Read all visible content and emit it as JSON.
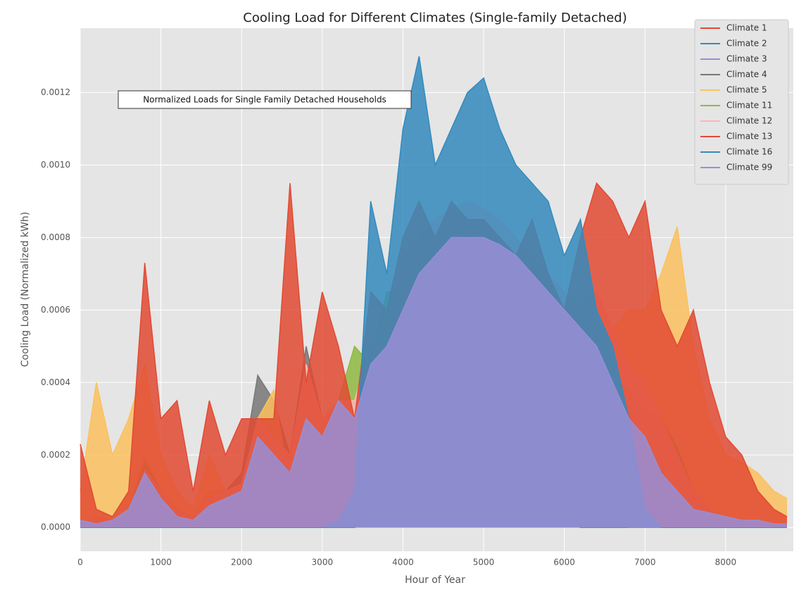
{
  "chart_data": {
    "type": "line",
    "title": "Cooling Load for Different Climates (Single-family Detached)",
    "x_label": "Hour of Year",
    "y_label": "Cooling Load (Normalized kWh)",
    "annotation": "Normalized Loads for Single Family Detached Households",
    "x": [
      0,
      200,
      400,
      600,
      800,
      1000,
      1200,
      1400,
      1600,
      1800,
      2000,
      2200,
      2400,
      2600,
      2800,
      3000,
      3200,
      3400,
      3600,
      3800,
      4000,
      4200,
      4400,
      4600,
      4800,
      5000,
      5200,
      5400,
      5600,
      5800,
      6000,
      6200,
      6400,
      6600,
      6800,
      7000,
      7200,
      7400,
      7600,
      7800,
      8000,
      8200,
      8400,
      8600,
      8760
    ],
    "xlim": [
      0,
      8760
    ],
    "xticks": [
      0,
      1000,
      2000,
      3000,
      4000,
      5000,
      6000,
      7000,
      8000
    ],
    "ylim": [
      -6.56e-05,
      0.0013776
    ],
    "yticks": [
      {
        "value": 0,
        "label": "0.0000"
      },
      0.0002,
      0.0004,
      0.0006,
      0.0008,
      {
        "value": 0.001,
        "label": "0.0010"
      },
      0.0012
    ],
    "grid": true,
    "legend": "upper right",
    "series": [
      {
        "name": "Climate 1",
        "color": "#E24A33",
        "values": [
          0,
          0,
          0,
          0,
          0,
          0,
          0,
          0,
          0,
          0,
          0,
          0,
          0,
          0,
          0,
          0,
          1e-05,
          1e-05,
          2e-05,
          2e-05,
          2e-05,
          3e-05,
          3e-05,
          3e-05,
          3e-05,
          2e-05,
          3e-05,
          2e-05,
          2e-05,
          2e-05,
          1e-05,
          1e-05,
          1e-05,
          0,
          0,
          0,
          0,
          0,
          0,
          0,
          0,
          0,
          0,
          0,
          0
        ]
      },
      {
        "name": "Climate 2",
        "color": "#348ABD",
        "values": [
          0,
          0,
          0,
          0,
          0,
          0,
          0,
          0,
          0,
          0,
          0,
          0,
          0,
          0,
          0,
          0,
          0,
          0,
          1e-05,
          1e-05,
          2e-05,
          2e-05,
          2e-05,
          3e-05,
          3e-05,
          2e-05,
          2e-05,
          2e-05,
          2e-05,
          1e-05,
          1e-05,
          0,
          0,
          0,
          0,
          0,
          0,
          0,
          0,
          0,
          0,
          0,
          0,
          0,
          0
        ]
      },
      {
        "name": "Climate 3",
        "color": "#988ED5",
        "values": [
          0,
          0,
          0,
          1e-05,
          2e-05,
          1e-05,
          0,
          0,
          0,
          0,
          1e-05,
          2e-05,
          1e-05,
          1e-05,
          2e-05,
          2e-05,
          3e-05,
          3e-05,
          4e-05,
          5e-05,
          6e-05,
          8e-05,
          9e-05,
          0.0001,
          0.0001,
          9e-05,
          7e-05,
          5e-05,
          4e-05,
          3e-05,
          2e-05,
          2e-05,
          1e-05,
          1e-05,
          0,
          0,
          0,
          0,
          0,
          0,
          0,
          0,
          0,
          0,
          0
        ]
      },
      {
        "name": "Climate 4",
        "color": "#777777",
        "values": [
          1e-05,
          3e-05,
          2e-05,
          5e-05,
          0.0002,
          0.0001,
          5e-05,
          3e-05,
          0.0001,
          0.0001,
          0.00015,
          0.00042,
          0.00035,
          0.0002,
          0.0005,
          0.0003,
          0.0003,
          0.0003,
          0.0004,
          0.0005,
          0.0006,
          0.0007,
          0.00075,
          0.00078,
          0.0008,
          0.0008,
          0.00078,
          0.00075,
          0.0007,
          0.00065,
          0.0006,
          0.00055,
          0.0005,
          0.0004,
          0.00035,
          0.0003,
          0.00025,
          0.0002,
          0.0001,
          5e-05,
          3e-05,
          2e-05,
          2e-05,
          1e-05,
          1e-05
        ]
      },
      {
        "name": "Climate 5",
        "color": "#FBC15E",
        "values": [
          0.0001,
          0.0004,
          0.0002,
          0.0003,
          0.00045,
          0.0002,
          0.0001,
          5e-05,
          0.0002,
          0.0001,
          0.0001,
          0.0003,
          0.00038,
          0.0001,
          5e-05,
          3e-05,
          3e-05,
          3e-05,
          5e-05,
          3e-05,
          5e-05,
          5e-05,
          8e-05,
          8e-05,
          0.0001,
          8e-05,
          5e-05,
          5e-05,
          3e-05,
          5e-05,
          0.0001,
          0.0002,
          0.0004,
          0.00055,
          0.0006,
          0.0006,
          0.0007,
          0.00083,
          0.0005,
          0.0003,
          0.0002,
          0.00018,
          0.00015,
          0.0001,
          8e-05
        ]
      },
      {
        "name": "Climate 11",
        "color": "#8EBA42",
        "values": [
          1e-05,
          2e-05,
          2e-05,
          4e-05,
          0.00018,
          0.0001,
          4e-05,
          3e-05,
          8e-05,
          0.0001,
          0.00012,
          0.0003,
          0.00025,
          0.00018,
          0.00045,
          0.0003,
          0.00035,
          0.0005,
          0.00045,
          0.00065,
          0.00065,
          0.00072,
          0.00076,
          0.0008,
          0.00081,
          0.0008,
          0.0008,
          0.00076,
          0.00072,
          0.00066,
          0.00062,
          0.00056,
          0.0005,
          0.00042,
          0.00038,
          0.00033,
          0.0003,
          0.00022,
          0.0001,
          5e-05,
          3e-05,
          2e-05,
          2e-05,
          1e-05,
          1e-05
        ]
      },
      {
        "name": "Climate 12",
        "color": "#FFB5B8",
        "values": [
          1e-05,
          2e-05,
          2e-05,
          4e-05,
          0.00016,
          0.0001,
          4e-05,
          3e-05,
          8e-05,
          0.0001,
          0.00012,
          0.0003,
          0.00025,
          0.0002,
          0.00045,
          0.0003,
          0.00035,
          0.00035,
          0.0005,
          0.0005,
          0.00075,
          0.0008,
          0.00085,
          0.00088,
          0.0009,
          0.00088,
          0.00085,
          0.0008,
          0.00075,
          0.0007,
          0.00065,
          0.0006,
          0.00065,
          0.00055,
          0.00045,
          0.0004,
          0.0003,
          0.0002,
          0.0001,
          5e-05,
          3e-05,
          2e-05,
          2e-05,
          1e-05,
          1e-05
        ]
      },
      {
        "name": "Climate 13",
        "color": "#E24A33",
        "values": [
          0.00023,
          5e-05,
          3e-05,
          0.0001,
          0.00073,
          0.0003,
          0.00035,
          0.0001,
          0.00035,
          0.0002,
          0.0003,
          0.0003,
          0.0003,
          0.00095,
          0.0004,
          0.00065,
          0.0005,
          0.0003,
          0.00065,
          0.0006,
          0.0008,
          0.0009,
          0.0008,
          0.0009,
          0.00085,
          0.00085,
          0.0008,
          0.00075,
          0.00085,
          0.0007,
          0.0006,
          0.0008,
          0.00095,
          0.0009,
          0.0008,
          0.0009,
          0.0006,
          0.0005,
          0.0006,
          0.0004,
          0.00025,
          0.0002,
          0.0001,
          5e-05,
          3e-05
        ]
      },
      {
        "name": "Climate 16",
        "color": "#348ABD",
        "values": [
          0,
          0,
          0,
          0,
          0,
          0,
          0,
          0,
          0,
          0,
          0,
          0,
          0,
          0,
          0,
          0,
          2e-05,
          0.0001,
          0.0009,
          0.0007,
          0.0011,
          0.0013,
          0.001,
          0.0011,
          0.0012,
          0.00124,
          0.0011,
          0.001,
          0.00095,
          0.0009,
          0.00075,
          0.00085,
          0.0006,
          0.0005,
          0.0003,
          5e-05,
          0,
          0,
          0,
          0,
          0,
          0,
          0,
          0,
          0
        ]
      },
      {
        "name": "Climate 99",
        "color": "#988ED5",
        "values": [
          2e-05,
          1e-05,
          2e-05,
          5e-05,
          0.00015,
          8e-05,
          3e-05,
          2e-05,
          6e-05,
          8e-05,
          0.0001,
          0.00025,
          0.0002,
          0.00015,
          0.0003,
          0.00025,
          0.00035,
          0.0003,
          0.00045,
          0.0005,
          0.0006,
          0.0007,
          0.00075,
          0.0008,
          0.0008,
          0.0008,
          0.00078,
          0.00075,
          0.0007,
          0.00065,
          0.0006,
          0.00055,
          0.0005,
          0.0004,
          0.0003,
          0.00025,
          0.00015,
          0.0001,
          5e-05,
          4e-05,
          3e-05,
          2e-05,
          2e-05,
          1e-05,
          1e-05
        ]
      }
    ]
  }
}
